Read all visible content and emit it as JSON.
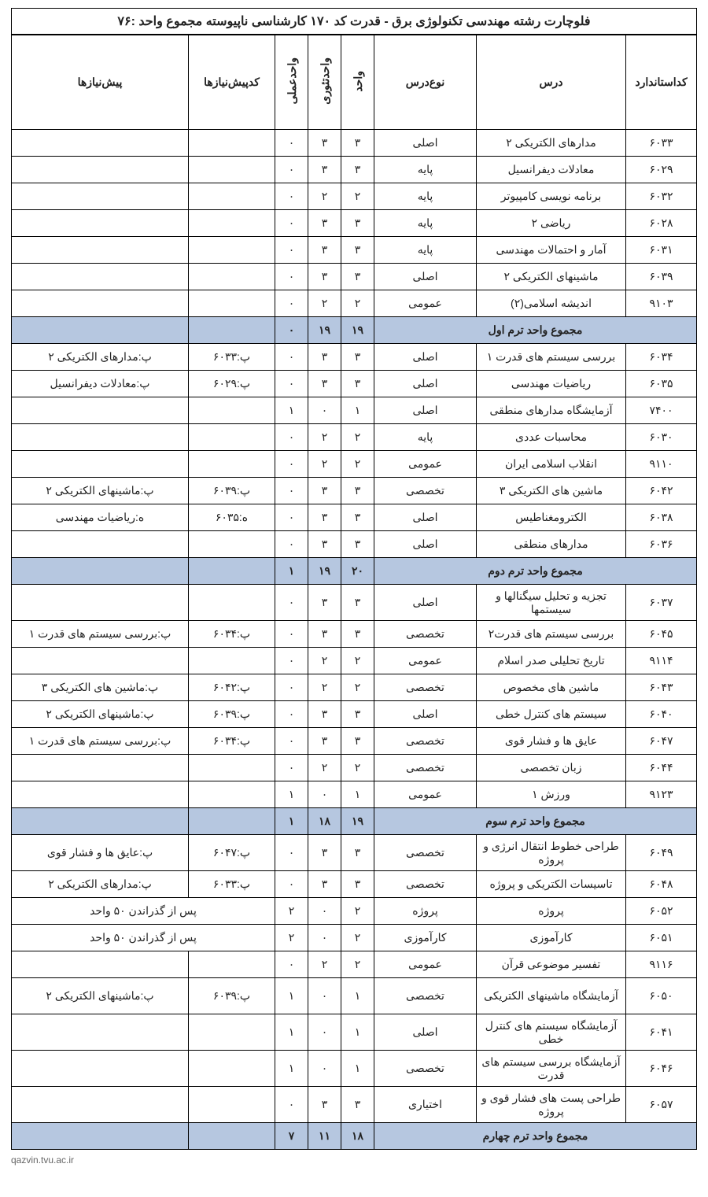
{
  "title": "فلوچارت رشته مهندسی تکنولوژی برق - قدرت کد ۱۷۰  کارشناسی ناپیوسته   مجموع واحد :۷۶",
  "headers": {
    "code": "کداستاندارد",
    "course": "درس",
    "type": "نوع‌درس",
    "unit": "واحد",
    "theory": "واحدتئوری",
    "practical": "واحدعملی",
    "precode": "کدپیش‌نیازها",
    "prereq": "پیش‌نیازها"
  },
  "sections": [
    {
      "rows": [
        {
          "code": "۶۰۳۳",
          "course": "مدارهای الکتریکی ۲",
          "type": "اصلی",
          "u": "۳",
          "t": "۳",
          "p": "۰",
          "pc": "",
          "pr": ""
        },
        {
          "code": "۶۰۲۹",
          "course": "معادلات دیفرانسیل",
          "type": "پایه",
          "u": "۳",
          "t": "۳",
          "p": "۰",
          "pc": "",
          "pr": ""
        },
        {
          "code": "۶۰۳۲",
          "course": "برنامه نویسی کامپیوتر",
          "type": "پایه",
          "u": "۲",
          "t": "۲",
          "p": "۰",
          "pc": "",
          "pr": ""
        },
        {
          "code": "۶۰۲۸",
          "course": "ریاضی ۲",
          "type": "پایه",
          "u": "۳",
          "t": "۳",
          "p": "۰",
          "pc": "",
          "pr": ""
        },
        {
          "code": "۶۰۳۱",
          "course": "آمار و احتمالات مهندسی",
          "type": "پایه",
          "u": "۳",
          "t": "۳",
          "p": "۰",
          "pc": "",
          "pr": ""
        },
        {
          "code": "۶۰۳۹",
          "course": "ماشینهای الکتریکی ۲",
          "type": "اصلی",
          "u": "۳",
          "t": "۳",
          "p": "۰",
          "pc": "",
          "pr": ""
        },
        {
          "code": "۹۱۰۳",
          "course": "اندیشه اسلامی(۲)",
          "type": "عمومی",
          "u": "۲",
          "t": "۲",
          "p": "۰",
          "pc": "",
          "pr": ""
        }
      ],
      "summary": {
        "label": "مجموع واحد ترم اول",
        "u": "۱۹",
        "t": "۱۹",
        "p": "۰"
      }
    },
    {
      "rows": [
        {
          "code": "۶۰۳۴",
          "course": "بررسی سیستم های قدرت ۱",
          "type": "اصلی",
          "u": "۳",
          "t": "۳",
          "p": "۰",
          "pc": "پ:۶۰۳۳",
          "pr": "پ:مدارهای الکتریکی ۲"
        },
        {
          "code": "۶۰۳۵",
          "course": "ریاضیات مهندسی",
          "type": "اصلی",
          "u": "۳",
          "t": "۳",
          "p": "۰",
          "pc": "پ:۶۰۲۹",
          "pr": "پ:معادلات دیفرانسیل"
        },
        {
          "code": "۷۴۰۰",
          "course": "آزمایشگاه مدارهای منطقی",
          "type": "اصلی",
          "u": "۱",
          "t": "۰",
          "p": "۱",
          "pc": "",
          "pr": ""
        },
        {
          "code": "۶۰۳۰",
          "course": "محاسبات عددی",
          "type": "پایه",
          "u": "۲",
          "t": "۲",
          "p": "۰",
          "pc": "",
          "pr": ""
        },
        {
          "code": "۹۱۱۰",
          "course": "انقلاب اسلامی ایران",
          "type": "عمومی",
          "u": "۲",
          "t": "۲",
          "p": "۰",
          "pc": "",
          "pr": ""
        },
        {
          "code": "۶۰۴۲",
          "course": "ماشین های الکتریکی ۳",
          "type": "تخصصی",
          "u": "۳",
          "t": "۳",
          "p": "۰",
          "pc": "پ:۶۰۳۹",
          "pr": "پ:ماشینهای الکتریکی ۲"
        },
        {
          "code": "۶۰۳۸",
          "course": "الکترومغناطیس",
          "type": "اصلی",
          "u": "۳",
          "t": "۳",
          "p": "۰",
          "pc": "ه:۶۰۳۵",
          "pr": "ه:ریاضیات مهندسی"
        },
        {
          "code": "۶۰۳۶",
          "course": "مدارهای منطقی",
          "type": "اصلی",
          "u": "۳",
          "t": "۳",
          "p": "۰",
          "pc": "",
          "pr": ""
        }
      ],
      "summary": {
        "label": "مجموع واحد ترم دوم",
        "u": "۲۰",
        "t": "۱۹",
        "p": "۱"
      }
    },
    {
      "rows": [
        {
          "code": "۶۰۳۷",
          "course": "تجزیه و تحلیل سیگنالها و سیستمها",
          "type": "اصلی",
          "u": "۳",
          "t": "۳",
          "p": "۰",
          "pc": "",
          "pr": "",
          "tall": true
        },
        {
          "code": "۶۰۴۵",
          "course": "بررسی سیستم های قدرت۲",
          "type": "تخصصی",
          "u": "۳",
          "t": "۳",
          "p": "۰",
          "pc": "پ:۶۰۳۴",
          "pr": "پ:بررسی سیستم های قدرت ۱"
        },
        {
          "code": "۹۱۱۴",
          "course": "تاریخ تحلیلی صدر اسلام",
          "type": "عمومی",
          "u": "۲",
          "t": "۲",
          "p": "۰",
          "pc": "",
          "pr": ""
        },
        {
          "code": "۶۰۴۳",
          "course": "ماشین های مخصوص",
          "type": "تخصصی",
          "u": "۲",
          "t": "۲",
          "p": "۰",
          "pc": "پ:۶۰۴۲",
          "pr": "پ:ماشین های الکتریکی ۳"
        },
        {
          "code": "۶۰۴۰",
          "course": "سیستم های کنترل خطی",
          "type": "اصلی",
          "u": "۳",
          "t": "۳",
          "p": "۰",
          "pc": "پ:۶۰۳۹",
          "pr": "پ:ماشینهای الکتریکی ۲"
        },
        {
          "code": "۶۰۴۷",
          "course": "عایق ها و فشار قوی",
          "type": "تخصصی",
          "u": "۳",
          "t": "۳",
          "p": "۰",
          "pc": "پ:۶۰۳۴",
          "pr": "پ:بررسی سیستم های قدرت ۱"
        },
        {
          "code": "۶۰۴۴",
          "course": "زبان تخصصی",
          "type": "تخصصی",
          "u": "۲",
          "t": "۲",
          "p": "۰",
          "pc": "",
          "pr": ""
        },
        {
          "code": "۹۱۲۳",
          "course": "ورزش ۱",
          "type": "عمومی",
          "u": "۱",
          "t": "۰",
          "p": "۱",
          "pc": "",
          "pr": ""
        }
      ],
      "summary": {
        "label": "مجموع واحد ترم سوم",
        "u": "۱۹",
        "t": "۱۸",
        "p": "۱"
      }
    },
    {
      "rows": [
        {
          "code": "۶۰۴۹",
          "course": "طراحی خطوط انتقال انرژی و پروژه",
          "type": "تخصصی",
          "u": "۳",
          "t": "۳",
          "p": "۰",
          "pc": "پ:۶۰۴۷",
          "pr": "پ:عایق ها و فشار قوی",
          "tall": true
        },
        {
          "code": "۶۰۴۸",
          "course": "تاسیسات الکتریکی و پروژه",
          "type": "تخصصی",
          "u": "۳",
          "t": "۳",
          "p": "۰",
          "pc": "پ:۶۰۳۳",
          "pr": "پ:مدارهای الکتریکی ۲"
        },
        {
          "code": "۶۰۵۲",
          "course": "پروژه",
          "type": "پروژه",
          "u": "۲",
          "t": "۰",
          "p": "۲",
          "prspan": "پس از گذراندن ۵۰ واحد"
        },
        {
          "code": "۶۰۵۱",
          "course": "کارآموزی",
          "type": "کارآموزی",
          "u": "۲",
          "t": "۰",
          "p": "۲",
          "prspan": "پس از گذراندن ۵۰ واحد"
        },
        {
          "code": "۹۱۱۶",
          "course": "تفسیر موضوعی قرآن",
          "type": "عمومی",
          "u": "۲",
          "t": "۲",
          "p": "۰",
          "pc": "",
          "pr": ""
        },
        {
          "code": "۶۰۵۰",
          "course": "آزمایشگاه ماشینهای الکتریکی",
          "type": "تخصصی",
          "u": "۱",
          "t": "۰",
          "p": "۱",
          "pc": "پ:۶۰۳۹",
          "pr": "پ:ماشینهای الکتریکی ۲",
          "tall": true
        },
        {
          "code": "۶۰۴۱",
          "course": "آزمایشگاه سیستم های کنترل خطی",
          "type": "اصلی",
          "u": "۱",
          "t": "۰",
          "p": "۱",
          "pc": "",
          "pr": "",
          "tall": true
        },
        {
          "code": "۶۰۴۶",
          "course": "آزمایشگاه بررسی سیستم های قدرت",
          "type": "تخصصی",
          "u": "۱",
          "t": "۰",
          "p": "۱",
          "pc": "",
          "pr": "",
          "tall": true
        },
        {
          "code": "۶۰۵۷",
          "course": "طراحی پست های فشار قوی و پروژه",
          "type": "اختیاری",
          "u": "۳",
          "t": "۳",
          "p": "۰",
          "pc": "",
          "pr": "",
          "tall": true
        }
      ],
      "summary": {
        "label": "مجموع واحد ترم چهارم",
        "u": "۱۸",
        "t": "۱۱",
        "p": "۷"
      }
    }
  ],
  "footer_url": "qazvin.tvu.ac.ir"
}
